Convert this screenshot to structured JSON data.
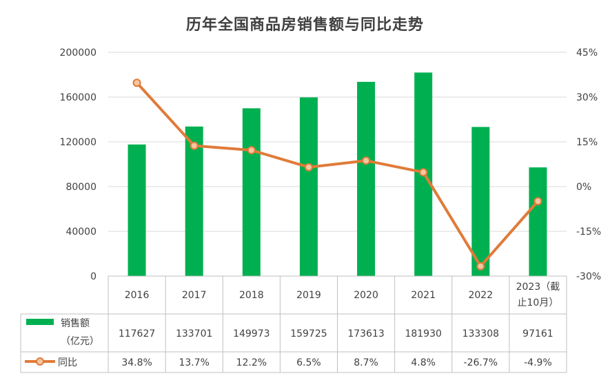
{
  "chart_data": {
    "type": "bar",
    "title": "历年全国商品房销售额与同比走势",
    "categories": [
      "2016",
      "2017",
      "2018",
      "2019",
      "2020",
      "2021",
      "2022",
      "2023（截止10月）"
    ],
    "category_lines": [
      [
        "2016"
      ],
      [
        "2017"
      ],
      [
        "2018"
      ],
      [
        "2019"
      ],
      [
        "2020"
      ],
      [
        "2021"
      ],
      [
        "2022"
      ],
      [
        "2023（截",
        "止10月）"
      ]
    ],
    "series": [
      {
        "name": "销售额（亿元）",
        "name_lines": [
          "销售额",
          "（亿元）"
        ],
        "type": "bar",
        "axis": "left",
        "color": "#00b050",
        "values": [
          117627,
          133701,
          149973,
          159725,
          173613,
          181930,
          133308,
          97161
        ],
        "labels": [
          "117627",
          "133701",
          "149973",
          "159725",
          "173613",
          "181930",
          "133308",
          "97161"
        ]
      },
      {
        "name": "同比",
        "type": "line",
        "axis": "right",
        "color": "#e07b39",
        "marker_fill": "#f4c7a1",
        "values": [
          34.8,
          13.7,
          12.2,
          6.5,
          8.7,
          4.8,
          -26.7,
          -4.9
        ],
        "labels": [
          "34.8%",
          "13.7%",
          "12.2%",
          "6.5%",
          "8.7%",
          "4.8%",
          "-26.7%",
          "-4.9%"
        ]
      }
    ],
    "y_left": {
      "min": 0,
      "max": 200000,
      "ticks": [
        "0",
        "40000",
        "80000",
        "120000",
        "160000",
        "200000"
      ]
    },
    "y_right": {
      "min": -30,
      "max": 45,
      "ticks": [
        "-30%",
        "-15%",
        "0%",
        "15%",
        "30%",
        "45%"
      ]
    },
    "grid": true,
    "legend": "data-table"
  }
}
